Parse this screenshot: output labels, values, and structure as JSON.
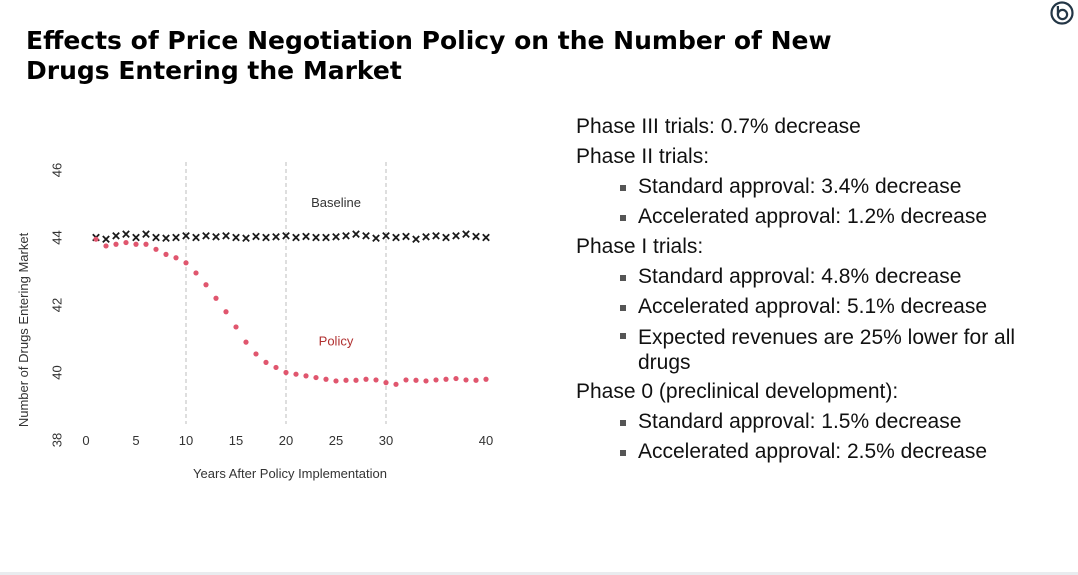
{
  "slide": {
    "title": "Effects of Price Negotiation Policy on the Number of New Drugs Entering the Market"
  },
  "logo": {
    "icon": "circular-b-logo-icon",
    "color": "#233646"
  },
  "findings": {
    "phase3": {
      "heading": "Phase III trials: 0.7% decrease"
    },
    "phase2": {
      "heading": "Phase II trials:",
      "items": [
        "Standard approval: 3.4% decrease",
        "Accelerated approval: 1.2% decrease"
      ]
    },
    "phase1": {
      "heading": "Phase I trials:",
      "items": [
        "Standard approval: 4.8% decrease",
        "Accelerated approval: 5.1% decrease",
        "Expected revenues are 25% lower for all drugs"
      ]
    },
    "phase0": {
      "heading": "Phase 0 (preclinical development):",
      "items": [
        "Standard approval: 1.5% decrease",
        "Accelerated approval: 2.5% decrease"
      ]
    }
  },
  "chart_data": {
    "type": "scatter",
    "title": "",
    "xlabel": "Years After Policy Implementation",
    "ylabel": "Number of Drugs Entering Market",
    "xlim": [
      0,
      40
    ],
    "ylim": [
      38,
      46
    ],
    "xticks": [
      0,
      5,
      10,
      15,
      20,
      25,
      30,
      40
    ],
    "yticks": [
      38,
      40,
      42,
      44,
      46
    ],
    "vlines": [
      10,
      20,
      30
    ],
    "grid": false,
    "annotations": [
      {
        "text": "Baseline",
        "x": 25,
        "y": 44.9,
        "color": "#333333"
      },
      {
        "text": "Policy",
        "x": 25,
        "y": 40.8,
        "color": "#b03030"
      }
    ],
    "series": [
      {
        "name": "Baseline",
        "marker": "x",
        "color": "#1a1a1a",
        "x": [
          1,
          2,
          3,
          4,
          5,
          6,
          7,
          8,
          9,
          10,
          11,
          12,
          13,
          14,
          15,
          16,
          17,
          18,
          19,
          20,
          21,
          22,
          23,
          24,
          25,
          26,
          27,
          28,
          29,
          30,
          31,
          32,
          33,
          34,
          35,
          36,
          37,
          38,
          39,
          40
        ],
        "y": [
          44.0,
          43.95,
          44.05,
          44.1,
          44.0,
          44.1,
          44.0,
          43.98,
          44.0,
          44.05,
          44.0,
          44.05,
          44.02,
          44.05,
          44.0,
          43.98,
          44.03,
          44.0,
          44.02,
          44.05,
          44.0,
          44.03,
          44.0,
          44.0,
          44.02,
          44.05,
          44.1,
          44.05,
          43.98,
          44.05,
          44.0,
          44.03,
          43.95,
          44.02,
          44.05,
          44.0,
          44.05,
          44.1,
          44.03,
          44.0
        ]
      },
      {
        "name": "Policy",
        "marker": "dot",
        "color": "#e0566e",
        "x": [
          1,
          2,
          3,
          4,
          5,
          6,
          7,
          8,
          9,
          10,
          11,
          12,
          13,
          14,
          15,
          16,
          17,
          18,
          19,
          20,
          21,
          22,
          23,
          24,
          25,
          26,
          27,
          28,
          29,
          30,
          31,
          32,
          33,
          34,
          35,
          36,
          37,
          38,
          39,
          40
        ],
        "y": [
          43.95,
          43.75,
          43.8,
          43.85,
          43.8,
          43.8,
          43.65,
          43.5,
          43.4,
          43.25,
          42.95,
          42.6,
          42.2,
          41.8,
          41.35,
          40.9,
          40.55,
          40.3,
          40.15,
          40.0,
          39.95,
          39.9,
          39.85,
          39.8,
          39.75,
          39.77,
          39.77,
          39.8,
          39.78,
          39.7,
          39.65,
          39.78,
          39.77,
          39.75,
          39.78,
          39.8,
          39.82,
          39.78,
          39.77,
          39.8
        ]
      }
    ]
  }
}
